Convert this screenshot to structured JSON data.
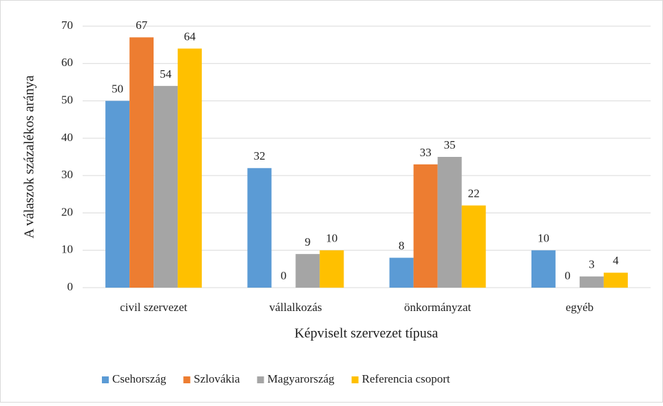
{
  "chart_data": {
    "type": "bar",
    "categories": [
      "civil szervezet",
      "vállalkozás",
      "önkormányzat",
      "egyéb"
    ],
    "series": [
      {
        "name": "Csehország",
        "color": "#5b9bd5",
        "values": [
          50,
          32,
          8,
          10
        ]
      },
      {
        "name": "Szlovákia",
        "color": "#ed7d31",
        "values": [
          67,
          0,
          33,
          0
        ]
      },
      {
        "name": "Magyarország",
        "color": "#a5a5a5",
        "values": [
          54,
          9,
          35,
          3
        ]
      },
      {
        "name": "Referencia csoport",
        "color": "#ffc000",
        "values": [
          64,
          10,
          22,
          4
        ]
      }
    ],
    "xlabel": "Képviselt szervezet típusa",
    "ylabel": "A válaszok százalékos aránya",
    "ylim": [
      0,
      70
    ],
    "yticks": [
      0,
      10,
      20,
      30,
      40,
      50,
      60,
      70
    ],
    "grid": true,
    "legend": "bottom"
  }
}
